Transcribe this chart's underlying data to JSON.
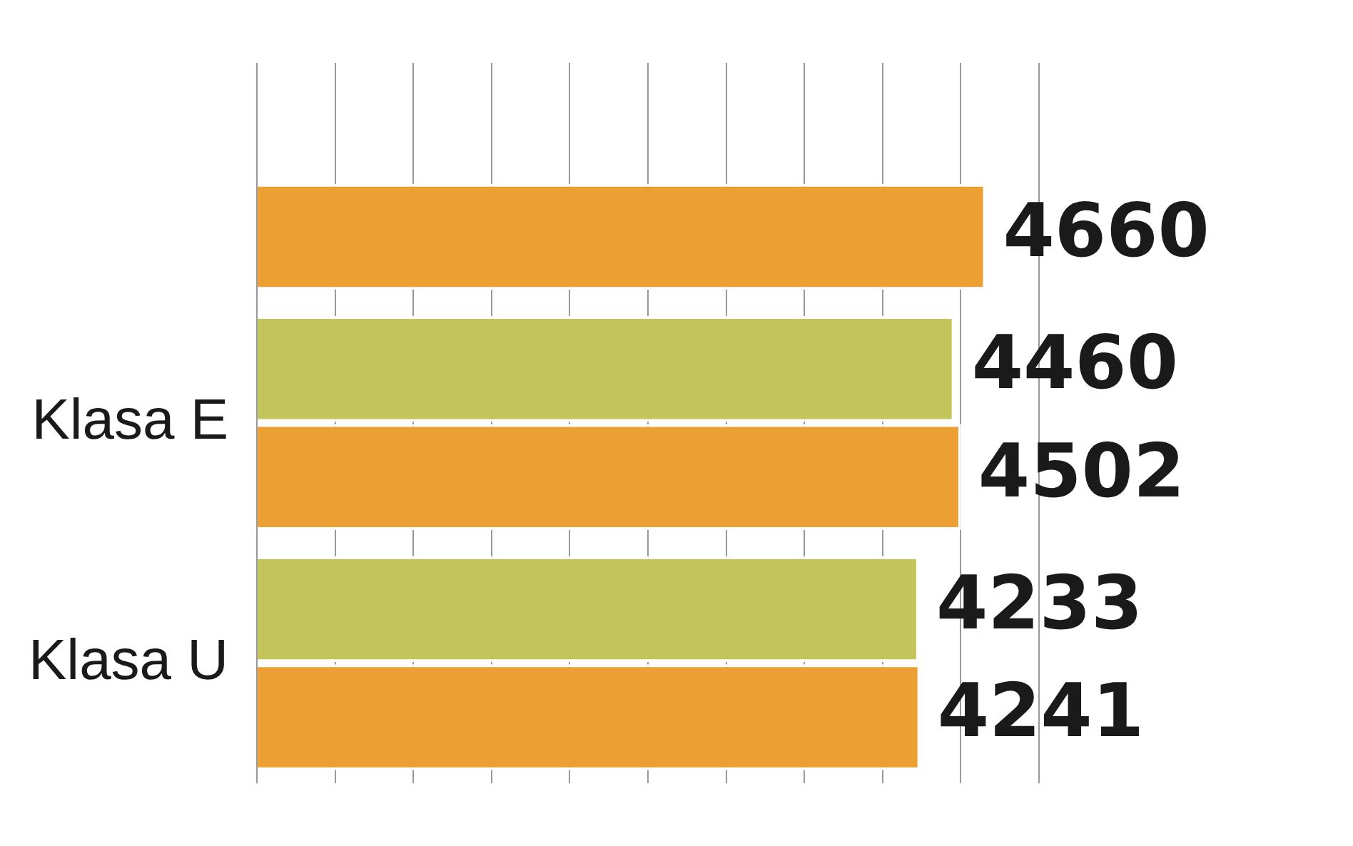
{
  "chart_data": {
    "type": "bar",
    "orientation": "horizontal",
    "categories": [
      null,
      "Klasa E",
      "Klasa U"
    ],
    "series": [
      {
        "color": "#c3c55a",
        "values": [
          null,
          4460,
          4233
        ]
      },
      {
        "color": "#ec9f32",
        "values": [
          4660,
          4502,
          4241
        ]
      }
    ],
    "data_labels": true,
    "grid": "x",
    "tick_labels": "y",
    "legend": false
  }
}
